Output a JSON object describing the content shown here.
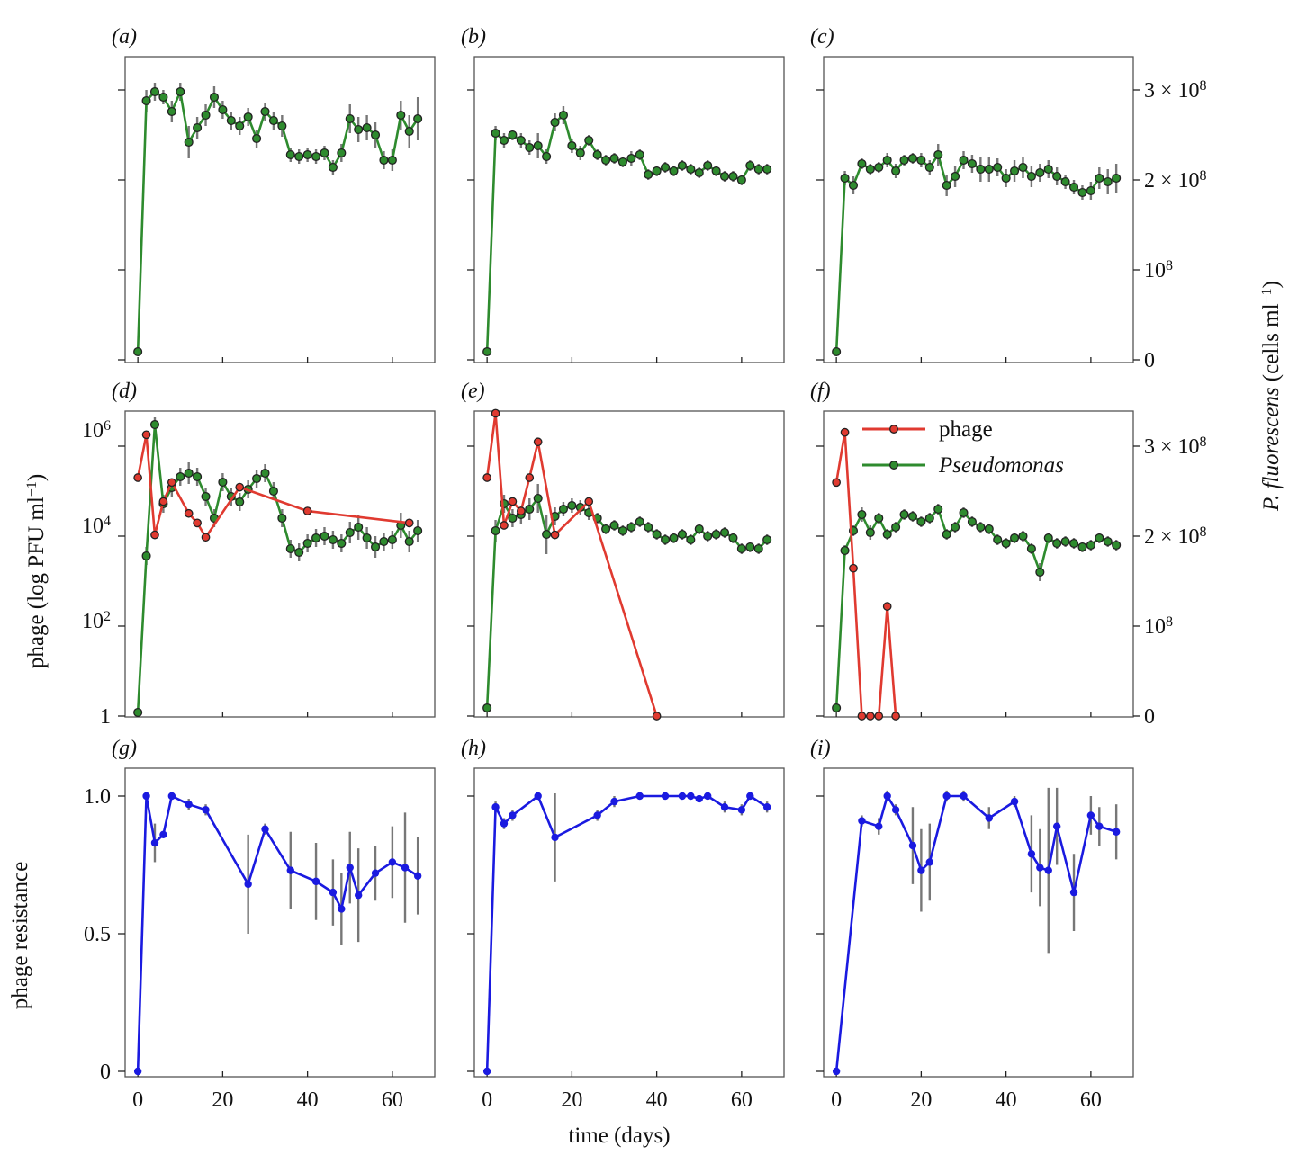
{
  "chart_data": {
    "type": "line",
    "colors": {
      "phage": "#e03a30",
      "pseudomonas": "#2e8b2e",
      "resistance": "#1a1ae0",
      "errorbar": "#777777",
      "marker_edge": "#222222"
    },
    "shared": {
      "x_label": "time (days)",
      "x_ticks": [
        0,
        20,
        40,
        60
      ],
      "xlim": [
        -3,
        70
      ],
      "left_label_phage": "phage (log PFU ml",
      "left_label_phage_sup": "−1",
      "left_label_phage_tail": ")",
      "left_label_resistance": "phage resistance",
      "right_label_main": "P. fluorescens",
      "right_label_tail": " (cells ml",
      "right_label_sup": "−1",
      "right_label_end": ")",
      "pseudomonas_ticks": [
        {
          "v": 0,
          "base": "0",
          "sup": ""
        },
        {
          "v": 100000000,
          "base": "10",
          "sup": "8"
        },
        {
          "v": 200000000,
          "base": "2 × 10",
          "sup": "8"
        },
        {
          "v": 300000000,
          "base": "3 × 10",
          "sup": "8"
        }
      ],
      "phage_ticks": [
        {
          "v": 0,
          "base": "1",
          "sup": ""
        },
        {
          "v": 2,
          "base": "10",
          "sup": "2"
        },
        {
          "v": 4,
          "base": "10",
          "sup": "4"
        },
        {
          "v": 6,
          "base": "10",
          "sup": "6"
        }
      ],
      "resistance_ticks": [
        {
          "v": 0,
          "label": "0"
        },
        {
          "v": 0.5,
          "label": "0.5"
        },
        {
          "v": 1,
          "label": "1.0"
        }
      ],
      "pseudomonas_ylim": [
        0,
        340000000
      ],
      "phage_ylim": [
        0,
        6.6
      ],
      "resistance_ylim": [
        0,
        1.05
      ]
    },
    "legend": {
      "location": "top-right",
      "entries": [
        {
          "name": "phage",
          "color": "#e03a30",
          "italic": false
        },
        {
          "name": "Pseudomonas",
          "color": "#2e8b2e",
          "italic": true
        }
      ]
    },
    "panels": [
      {
        "label": "(a)",
        "row": 0,
        "col": 0,
        "pseudomonas": {
          "x": [
            0,
            2,
            4,
            6,
            8,
            10,
            12,
            14,
            16,
            18,
            20,
            22,
            24,
            26,
            28,
            30,
            32,
            34,
            36,
            38,
            40,
            42,
            44,
            46,
            48,
            50,
            52,
            54,
            56,
            58,
            60,
            62,
            64,
            66
          ],
          "y": [
            0.09,
            2.88,
            2.98,
            2.92,
            2.76,
            2.98,
            2.42,
            2.58,
            2.72,
            2.92,
            2.78,
            2.66,
            2.6,
            2.7,
            2.46,
            2.76,
            2.66,
            2.6,
            2.28,
            2.26,
            2.28,
            2.26,
            2.3,
            2.14,
            2.3,
            2.68,
            2.56,
            2.58,
            2.5,
            2.22,
            2.22,
            2.72,
            2.54,
            2.68
          ],
          "err": [
            0,
            0.12,
            0.1,
            0.08,
            0.12,
            0.1,
            0.18,
            0.12,
            0.12,
            0.12,
            0.1,
            0.1,
            0.1,
            0.1,
            0.1,
            0.1,
            0.1,
            0.12,
            0.08,
            0.08,
            0.08,
            0.08,
            0.08,
            0.08,
            0.1,
            0.16,
            0.14,
            0.14,
            0.14,
            0.1,
            0.12,
            0.16,
            0.18,
            0.24
          ],
          "y_scale": 100000000
        }
      },
      {
        "label": "(b)",
        "row": 0,
        "col": 1,
        "pseudomonas": {
          "x": [
            0,
            2,
            4,
            6,
            8,
            10,
            12,
            14,
            16,
            18,
            20,
            22,
            24,
            26,
            28,
            30,
            32,
            34,
            36,
            38,
            40,
            42,
            44,
            46,
            48,
            50,
            52,
            54,
            56,
            58,
            60,
            62,
            64,
            66
          ],
          "y": [
            0.09,
            2.52,
            2.44,
            2.5,
            2.44,
            2.36,
            2.38,
            2.26,
            2.64,
            2.72,
            2.38,
            2.3,
            2.44,
            2.28,
            2.22,
            2.24,
            2.2,
            2.24,
            2.28,
            2.06,
            2.1,
            2.14,
            2.1,
            2.16,
            2.12,
            2.08,
            2.16,
            2.1,
            2.04,
            2.04,
            2,
            2.16,
            2.12,
            2.12
          ],
          "err": [
            0,
            0.08,
            0.08,
            0.06,
            0.08,
            0.08,
            0.14,
            0.08,
            0.1,
            0.1,
            0.08,
            0.08,
            0.06,
            0.06,
            0.06,
            0.06,
            0.06,
            0.08,
            0.06,
            0.06,
            0.06,
            0.06,
            0.06,
            0.06,
            0.06,
            0.06,
            0.06,
            0.06,
            0.06,
            0.06,
            0.06,
            0.06,
            0.06,
            0.06
          ],
          "y_scale": 100000000
        }
      },
      {
        "label": "(c)",
        "row": 0,
        "col": 2,
        "pseudomonas": {
          "x": [
            0,
            2,
            4,
            6,
            8,
            10,
            12,
            14,
            16,
            18,
            20,
            22,
            24,
            26,
            28,
            30,
            32,
            34,
            36,
            38,
            40,
            42,
            44,
            46,
            48,
            50,
            52,
            54,
            56,
            58,
            60,
            62,
            64,
            66
          ],
          "y": [
            0.09,
            2.02,
            1.94,
            2.18,
            2.12,
            2.14,
            2.22,
            2.1,
            2.22,
            2.24,
            2.22,
            2.14,
            2.28,
            1.94,
            2.04,
            2.22,
            2.18,
            2.12,
            2.12,
            2.14,
            2.02,
            2.1,
            2.14,
            2.04,
            2.08,
            2.12,
            2.04,
            1.98,
            1.92,
            1.86,
            1.88,
            2.02,
            1.98,
            2.02
          ],
          "err": [
            0,
            0.08,
            0.1,
            0.06,
            0.06,
            0.06,
            0.08,
            0.08,
            0.06,
            0.06,
            0.08,
            0.08,
            0.12,
            0.12,
            0.12,
            0.1,
            0.1,
            0.14,
            0.14,
            0.1,
            0.1,
            0.12,
            0.12,
            0.12,
            0.1,
            0.1,
            0.1,
            0.08,
            0.08,
            0.08,
            0.1,
            0.12,
            0.14,
            0.16
          ],
          "y_scale": 100000000
        }
      },
      {
        "label": "(d)",
        "row": 1,
        "col": 0,
        "pseudomonas": {
          "x": [
            0,
            2,
            4,
            6,
            8,
            10,
            12,
            14,
            16,
            18,
            20,
            22,
            24,
            26,
            28,
            30,
            32,
            34,
            36,
            38,
            40,
            42,
            44,
            46,
            48,
            50,
            52,
            54,
            56,
            58,
            60,
            62,
            64,
            66
          ],
          "y": [
            0.04,
            1.78,
            3.24,
            2.36,
            2.54,
            2.66,
            2.7,
            2.66,
            2.44,
            2.2,
            2.6,
            2.44,
            2.38,
            2.52,
            2.64,
            2.7,
            2.5,
            2.2,
            1.86,
            1.82,
            1.92,
            1.98,
            2,
            1.96,
            1.92,
            2.04,
            2.1,
            1.98,
            1.88,
            1.94,
            1.96,
            2.12,
            1.94,
            2.06
          ],
          "err": [
            0,
            0.1,
            0.08,
            0.1,
            0.1,
            0.1,
            0.12,
            0.1,
            0.1,
            0.1,
            0.1,
            0.1,
            0.1,
            0.1,
            0.1,
            0.1,
            0.1,
            0.1,
            0.1,
            0.1,
            0.1,
            0.1,
            0.1,
            0.1,
            0.1,
            0.12,
            0.14,
            0.12,
            0.12,
            0.1,
            0.1,
            0.14,
            0.12,
            0.12
          ],
          "y_scale": 100000000
        },
        "phage": {
          "x": [
            0,
            2,
            4,
            6,
            8,
            12,
            14,
            16,
            24,
            40,
            64
          ],
          "y": [
            5,
            5.9,
            3.8,
            4.5,
            4.9,
            4.25,
            4.05,
            3.75,
            4.8,
            4.3,
            4.05
          ]
        }
      },
      {
        "label": "(e)",
        "row": 1,
        "col": 1,
        "pseudomonas": {
          "x": [
            0,
            2,
            4,
            6,
            8,
            10,
            12,
            14,
            16,
            18,
            20,
            22,
            24,
            26,
            28,
            30,
            32,
            34,
            36,
            38,
            40,
            42,
            44,
            46,
            48,
            50,
            52,
            54,
            56,
            58,
            60,
            62,
            64,
            66
          ],
          "y": [
            0.09,
            2.06,
            2.36,
            2.2,
            2.24,
            2.3,
            2.42,
            2.02,
            2.22,
            2.3,
            2.34,
            2.32,
            2.26,
            2.2,
            2.08,
            2.12,
            2.06,
            2.1,
            2.16,
            2.1,
            2.02,
            1.96,
            1.98,
            2.02,
            1.96,
            2.08,
            2,
            2.02,
            2.04,
            1.98,
            1.86,
            1.88,
            1.86,
            1.96
          ],
          "err": [
            0,
            0.12,
            0.1,
            0.1,
            0.1,
            0.12,
            0.16,
            0.22,
            0.1,
            0.08,
            0.08,
            0.08,
            0.08,
            0.06,
            0.06,
            0.06,
            0.06,
            0.06,
            0.06,
            0.06,
            0.06,
            0.06,
            0.06,
            0.06,
            0.06,
            0.06,
            0.06,
            0.06,
            0.06,
            0.06,
            0.06,
            0.06,
            0.06,
            0.06
          ],
          "y_scale": 100000000
        },
        "phage": {
          "x": [
            0,
            2,
            4,
            6,
            8,
            10,
            12,
            16,
            24,
            40
          ],
          "y": [
            5,
            6.35,
            4,
            4.5,
            4.3,
            5,
            5.75,
            3.8,
            4.5,
            0
          ]
        }
      },
      {
        "label": "(f)",
        "row": 1,
        "col": 2,
        "pseudomonas": {
          "x": [
            0,
            2,
            4,
            6,
            8,
            10,
            12,
            14,
            16,
            18,
            20,
            22,
            24,
            26,
            28,
            30,
            32,
            34,
            36,
            38,
            40,
            42,
            44,
            46,
            48,
            50,
            52,
            54,
            56,
            58,
            60,
            62,
            64,
            66
          ],
          "y": [
            0.09,
            1.84,
            2.06,
            2.24,
            2.04,
            2.2,
            2.02,
            2.1,
            2.24,
            2.22,
            2.16,
            2.2,
            2.3,
            2.02,
            2.1,
            2.26,
            2.16,
            2.1,
            2.08,
            1.96,
            1.92,
            1.98,
            2,
            1.86,
            1.6,
            1.98,
            1.92,
            1.94,
            1.92,
            1.88,
            1.9,
            1.98,
            1.94,
            1.9
          ],
          "err": [
            0,
            0.06,
            0.06,
            0.08,
            0.08,
            0.06,
            0.06,
            0.06,
            0.06,
            0.06,
            0.06,
            0.06,
            0.06,
            0.06,
            0.06,
            0.06,
            0.06,
            0.06,
            0.06,
            0.06,
            0.06,
            0.06,
            0.06,
            0.06,
            0.1,
            0.06,
            0.06,
            0.06,
            0.06,
            0.06,
            0.06,
            0.06,
            0.06,
            0.06
          ],
          "y_scale": 100000000
        },
        "phage": {
          "x": [
            0,
            2,
            4,
            6,
            8,
            10,
            12,
            14
          ],
          "y": [
            4.9,
            5.95,
            3.1,
            0,
            0,
            0,
            2.3,
            0
          ]
        }
      },
      {
        "label": "(g)",
        "row": 2,
        "col": 0,
        "resistance": {
          "x": [
            0,
            2,
            4,
            6,
            8,
            12,
            16,
            26,
            30,
            36,
            42,
            46,
            48,
            50,
            52,
            56,
            60,
            63,
            66
          ],
          "y": [
            0,
            1,
            0.83,
            0.86,
            1,
            0.97,
            0.95,
            0.68,
            0.88,
            0.73,
            0.69,
            0.65,
            0.59,
            0.74,
            0.64,
            0.72,
            0.76,
            0.74,
            0.71
          ],
          "err": [
            0,
            0,
            0.07,
            0,
            0,
            0.02,
            0.02,
            0.18,
            0.02,
            0.14,
            0.14,
            0.12,
            0.13,
            0.13,
            0.17,
            0.1,
            0.13,
            0.2,
            0.14
          ]
        }
      },
      {
        "label": "(h)",
        "row": 2,
        "col": 1,
        "resistance": {
          "x": [
            0,
            2,
            4,
            6,
            12,
            16,
            26,
            30,
            36,
            42,
            46,
            48,
            50,
            52,
            56,
            60,
            62,
            66
          ],
          "y": [
            0,
            0.96,
            0.9,
            0.93,
            1,
            0.85,
            0.93,
            0.98,
            1,
            1,
            1,
            1,
            0.99,
            1,
            0.96,
            0.95,
            1,
            0.96
          ],
          "err": [
            0,
            0.02,
            0.02,
            0.02,
            0,
            0.16,
            0.02,
            0.02,
            0,
            0,
            0,
            0,
            0,
            0,
            0.02,
            0.02,
            0,
            0.02
          ]
        }
      },
      {
        "label": "(i)",
        "row": 2,
        "col": 2,
        "resistance": {
          "x": [
            0,
            6,
            10,
            12,
            14,
            18,
            20,
            22,
            26,
            30,
            36,
            42,
            46,
            48,
            50,
            52,
            56,
            60,
            62,
            66
          ],
          "y": [
            0,
            0.91,
            0.89,
            1,
            0.95,
            0.82,
            0.73,
            0.76,
            1,
            1,
            0.92,
            0.98,
            0.79,
            0.74,
            0.73,
            0.89,
            0.65,
            0.93,
            0.89,
            0.87
          ],
          "err": [
            0,
            0.02,
            0.03,
            0.02,
            0.02,
            0.14,
            0.15,
            0.14,
            0.02,
            0.02,
            0.04,
            0.02,
            0.14,
            0.14,
            0.3,
            0.14,
            0.14,
            0.07,
            0.07,
            0.1
          ]
        }
      }
    ]
  }
}
